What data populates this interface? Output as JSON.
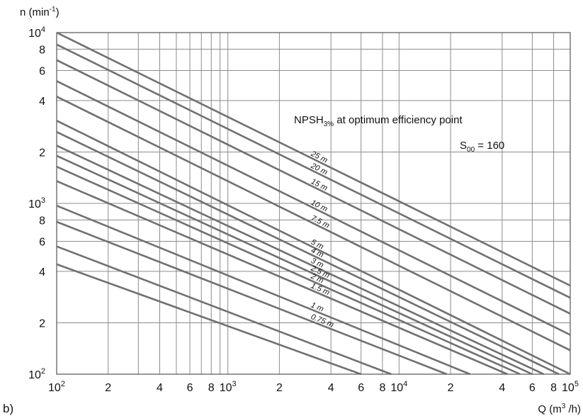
{
  "chart_data": {
    "type": "line",
    "xscale": "log",
    "yscale": "log",
    "xlim": [
      100,
      100000
    ],
    "ylim": [
      100,
      10000
    ],
    "grid": true,
    "panel_label": "b)",
    "ylabel": {
      "text": "n (min",
      "sup": "-1",
      "tail": ")"
    },
    "xlabel": {
      "text": "Q (m",
      "sup": "3",
      "tail": " /h)"
    },
    "x_ticks": [
      {
        "value": 100,
        "base": "10",
        "sup": "2"
      },
      {
        "value": 200,
        "base": "2",
        "sup": ""
      },
      {
        "value": 400,
        "base": "4",
        "sup": ""
      },
      {
        "value": 600,
        "base": "6",
        "sup": ""
      },
      {
        "value": 800,
        "base": "8",
        "sup": ""
      },
      {
        "value": 1000,
        "base": "10",
        "sup": "3"
      },
      {
        "value": 2000,
        "base": "2",
        "sup": ""
      },
      {
        "value": 4000,
        "base": "4",
        "sup": ""
      },
      {
        "value": 6000,
        "base": "6",
        "sup": ""
      },
      {
        "value": 8000,
        "base": "8",
        "sup": ""
      },
      {
        "value": 10000,
        "base": "10",
        "sup": "4"
      },
      {
        "value": 20000,
        "base": "2",
        "sup": ""
      },
      {
        "value": 40000,
        "base": "4",
        "sup": ""
      },
      {
        "value": 60000,
        "base": "6",
        "sup": ""
      },
      {
        "value": 80000,
        "base": "8",
        "sup": ""
      },
      {
        "value": 100000,
        "base": "10",
        "sup": "5"
      }
    ],
    "y_ticks": [
      {
        "value": 100,
        "base": "10",
        "sup": "2"
      },
      {
        "value": 200,
        "base": "2",
        "sup": ""
      },
      {
        "value": 400,
        "base": "4",
        "sup": ""
      },
      {
        "value": 600,
        "base": "6",
        "sup": ""
      },
      {
        "value": 800,
        "base": "8",
        "sup": ""
      },
      {
        "value": 1000,
        "base": "10",
        "sup": "3"
      },
      {
        "value": 2000,
        "base": "2",
        "sup": ""
      },
      {
        "value": 4000,
        "base": "4",
        "sup": ""
      },
      {
        "value": 6000,
        "base": "6",
        "sup": ""
      },
      {
        "value": 8000,
        "base": "8",
        "sup": ""
      },
      {
        "value": 10000,
        "base": "10",
        "sup": "4"
      }
    ],
    "x_grid": [
      100,
      200,
      300,
      400,
      500,
      600,
      700,
      800,
      900,
      1000,
      2000,
      4000,
      6000,
      8000,
      10000,
      20000,
      40000,
      60000,
      80000,
      100000
    ],
    "y_grid": [
      100,
      200,
      400,
      600,
      800,
      1000,
      2000,
      4000,
      6000,
      8000,
      10000
    ],
    "annotation": {
      "main": "NPSH",
      "sub": "3%",
      "rest": " at optimum efficiency point"
    },
    "spec": {
      "main": "S",
      "sub": "00",
      "rest": " = 160"
    },
    "series": [
      {
        "name": "25 m",
        "label_at_q": 3000,
        "points": [
          [
            100,
            10000
          ],
          [
            100000,
            330
          ]
        ]
      },
      {
        "name": "20 m",
        "label_at_q": 3000,
        "points": [
          [
            100,
            8520
          ],
          [
            100000,
            280
          ]
        ]
      },
      {
        "name": "15 m",
        "label_at_q": 3000,
        "points": [
          [
            100,
            6900
          ],
          [
            100000,
            226
          ]
        ]
      },
      {
        "name": "10 m",
        "label_at_q": 3000,
        "points": [
          [
            100,
            5200
          ],
          [
            100000,
            170
          ]
        ]
      },
      {
        "name": "7.5 m",
        "label_at_q": 3000,
        "points": [
          [
            100,
            4220
          ],
          [
            100000,
            138
          ]
        ]
      },
      {
        "name": "5 m",
        "label_at_q": 3000,
        "points": [
          [
            100,
            3050
          ],
          [
            100000,
            100
          ]
        ]
      },
      {
        "name": "4 m",
        "label_at_q": 3000,
        "points": [
          [
            100,
            2620
          ],
          [
            86000,
            100
          ]
        ]
      },
      {
        "name": "3 m",
        "label_at_q": 3000,
        "points": [
          [
            100,
            2180
          ],
          [
            70000,
            100
          ]
        ]
      },
      {
        "name": "2.5 m",
        "label_at_q": 3000,
        "points": [
          [
            100,
            1900
          ],
          [
            60000,
            100
          ]
        ]
      },
      {
        "name": "2 m",
        "label_at_q": 3000,
        "points": [
          [
            100,
            1640
          ],
          [
            51000,
            100
          ]
        ]
      },
      {
        "name": "1.5 m",
        "label_at_q": 3000,
        "points": [
          [
            100,
            1350
          ],
          [
            43000,
            100
          ]
        ]
      },
      {
        "name": "1 m",
        "label_at_q": 3000,
        "points": [
          [
            100,
            970
          ],
          [
            26000,
            100
          ]
        ]
      },
      {
        "name": "0.75 m",
        "label_at_q": 3000,
        "points": [
          [
            100,
            780
          ],
          [
            19000,
            100
          ]
        ]
      },
      {
        "name": "",
        "points": [
          [
            100,
            560
          ],
          [
            9000,
            100
          ]
        ]
      },
      {
        "name": "",
        "points": [
          [
            100,
            440
          ],
          [
            6000,
            100
          ]
        ]
      }
    ],
    "colors": {
      "curve": "#707070",
      "grid": "#8c8c8c",
      "frame": "#555555",
      "text": "#111111"
    }
  }
}
